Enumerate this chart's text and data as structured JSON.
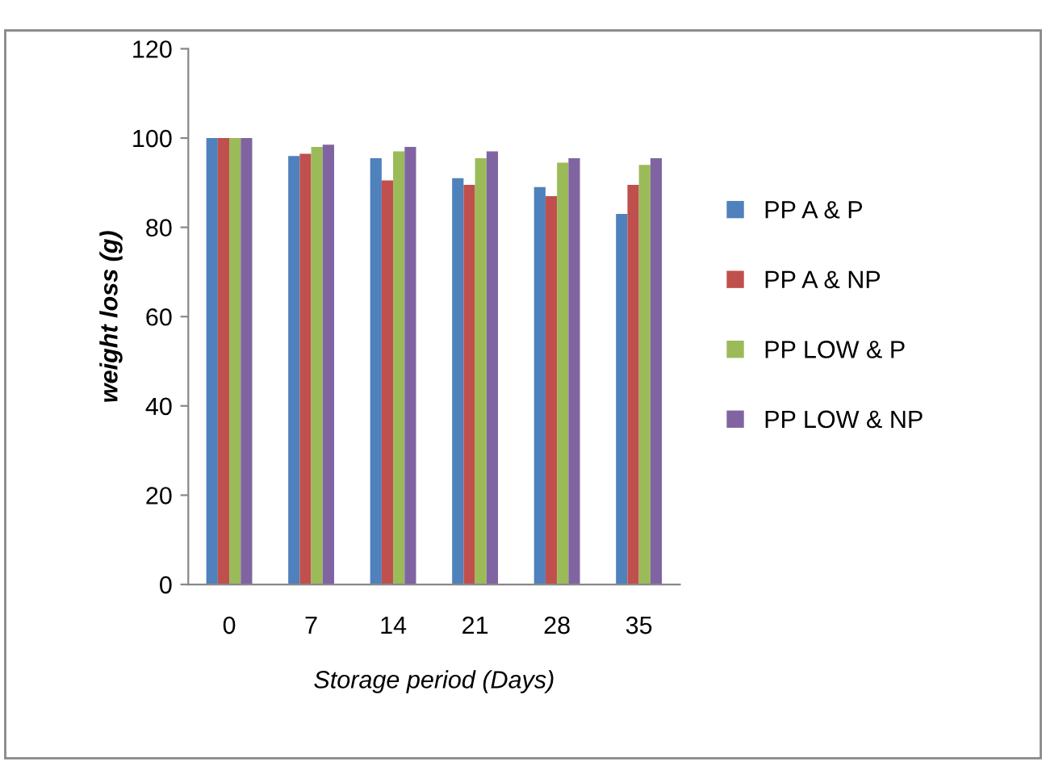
{
  "chart_data": {
    "type": "bar",
    "xlabel": "Storage period (Days)",
    "ylabel": "weight loss (g)",
    "categories": [
      "0",
      "7",
      "14",
      "21",
      "28",
      "35"
    ],
    "series": [
      {
        "name": "PP A & P",
        "color": "#4f81bd",
        "values": [
          100,
          96,
          95.5,
          91,
          89,
          83
        ]
      },
      {
        "name": "PP A & NP",
        "color": "#c0504d",
        "values": [
          100,
          96.5,
          90.5,
          89.5,
          87,
          89.5
        ]
      },
      {
        "name": "PP LOW & P",
        "color": "#9bbb59",
        "values": [
          100,
          98,
          97,
          95.5,
          94.5,
          94
        ]
      },
      {
        "name": "PP LOW & NP",
        "color": "#8064a2",
        "values": [
          100,
          98.5,
          98,
          97,
          95.5,
          95.5
        ]
      }
    ],
    "ylim": [
      0,
      120
    ],
    "yticks": [
      0,
      20,
      40,
      60,
      80,
      100,
      120
    ],
    "grid": false,
    "legend": "right"
  }
}
